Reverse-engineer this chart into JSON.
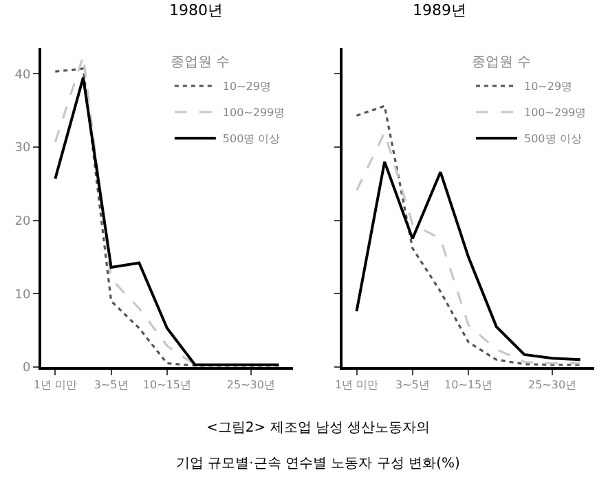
{
  "chart_data": [
    {
      "type": "line",
      "title": "1980년",
      "legend_title": "종업원 수",
      "legend": "top right",
      "categories": [
        "1년 미만",
        null,
        "3~5년",
        null,
        "10~15년",
        null,
        null,
        "25~30년",
        null
      ],
      "ylim": [
        0,
        43.5
      ],
      "yticks": [
        0,
        10,
        20,
        30,
        40
      ],
      "series": [
        {
          "name": "10~29명",
          "color": "#555555",
          "line_style": "dotted",
          "values": [
            40.3,
            40.7,
            9.0,
            5.3,
            0.5,
            0.2,
            0.2,
            0.2,
            0.2
          ]
        },
        {
          "name": "100~299명",
          "color": "#c8c8c8",
          "line_style": "dashed",
          "values": [
            30.7,
            42.4,
            12.0,
            8.0,
            2.9,
            0.3,
            0.3,
            0.3,
            0.3
          ]
        },
        {
          "name": "500명 이상",
          "color": "#000000",
          "line_style": "solid",
          "values": [
            25.7,
            39.5,
            13.6,
            14.2,
            5.3,
            0.3,
            0.3,
            0.3,
            0.3
          ]
        }
      ],
      "annotations": [
        "<그림2> 제조업 남성 생산노동자의",
        "기업 규모별·근속 연수별 노동자 구성 변화(%)"
      ]
    },
    {
      "type": "line",
      "title": "1989년",
      "legend_title": "종업원 수",
      "legend": "top right",
      "tick_labels": "x",
      "categories": [
        "1년 미만",
        null,
        "3~5년",
        null,
        "10~15년",
        null,
        null,
        "25~30년",
        null
      ],
      "ylim": [
        0,
        43.5
      ],
      "yticks": [
        0,
        10,
        20,
        30,
        40
      ],
      "series": [
        {
          "name": "10~29명",
          "color": "#555555",
          "line_style": "dotted",
          "values": [
            34.3,
            35.6,
            16.2,
            10.3,
            3.4,
            1.0,
            0.4,
            0.3,
            0.3
          ]
        },
        {
          "name": "100~299명",
          "color": "#c8c8c8",
          "line_style": "dashed",
          "values": [
            24.1,
            32.0,
            19.5,
            17.5,
            5.7,
            2.4,
            0.7,
            0.5,
            0.5
          ]
        },
        {
          "name": "500명 이상",
          "color": "#000000",
          "line_style": "solid",
          "values": [
            7.6,
            28.0,
            17.5,
            26.6,
            15.0,
            5.5,
            1.7,
            1.2,
            1.0
          ]
        }
      ]
    }
  ]
}
